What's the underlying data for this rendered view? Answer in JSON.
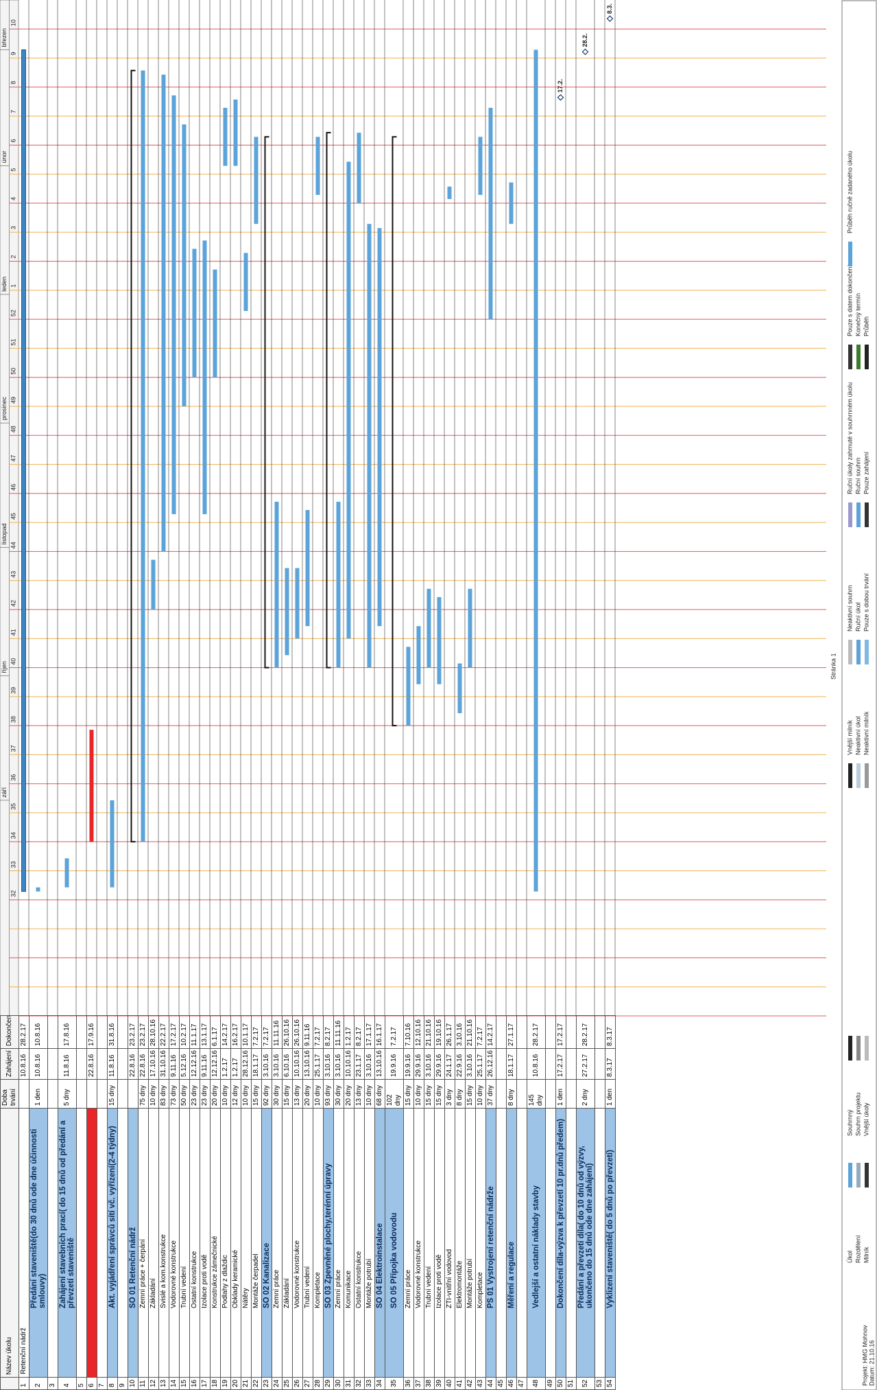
{
  "header": {
    "columns": [
      "Název úkolu",
      "Doba trvání",
      "Zahájení",
      "Dokončení"
    ]
  },
  "timeline": {
    "months": [
      "září",
      "říjen",
      "listopad",
      "prosinec",
      "leden",
      "únor",
      "březen"
    ],
    "weeks": [
      null,
      null,
      null,
      null,
      32,
      33,
      34,
      35,
      36,
      37,
      38,
      39,
      40,
      41,
      42,
      43,
      44,
      45,
      46,
      47,
      48,
      49,
      50,
      51,
      52,
      1,
      2,
      3,
      4,
      5,
      6,
      7,
      8,
      9,
      10
    ]
  },
  "colors": {
    "task": "#5ba3d9",
    "project": "#3c86c4",
    "summary": "#111111",
    "critical": "#e8262a",
    "highlight": "#9dc3e6",
    "grid_a": "#e3585a",
    "grid_b": "#f0b050"
  },
  "rows": [
    {
      "id": 1,
      "name": "Retenční nádrž",
      "start": "10.8.16",
      "end": "28.2.17",
      "bar": "project"
    },
    {
      "id": 2,
      "name": "Předání staveniště(do 30 dnů ode dne účinnosti smlouvy)",
      "duration": "1 den",
      "start": "10.8.16",
      "end": "10.8.16",
      "bar": "task",
      "highlight": "highlight"
    },
    {
      "id": 3
    },
    {
      "id": 4,
      "name": "Zahájení stavebních prací( do 15 dnů od předání a převzetí staveniště",
      "duration": "5 dny",
      "start": "11.8.16",
      "end": "17.8.16",
      "bar": "task",
      "highlight": "highlight"
    },
    {
      "id": 5
    },
    {
      "id": 6,
      "start": "22.8.16",
      "end": "17.9.16",
      "bar": "critical",
      "highlight": "critical"
    },
    {
      "id": 7
    },
    {
      "id": 8,
      "name": "Akt. vyjádření správců sítí vč. vyřízení(2-4 týdny)",
      "duration": "15 dny",
      "start": "11.8.16",
      "end": "31.8.16",
      "bar": "task",
      "highlight": "highlight"
    },
    {
      "id": 9
    },
    {
      "id": 10,
      "name": "SO 01 Retenční nádrž",
      "start": "22.8.16",
      "end": "23.2.17",
      "bar": "summary",
      "highlight": "highlight"
    },
    {
      "id": 11,
      "name": "Zemní práce + čerpání",
      "duration": "75 dny",
      "start": "22.8.16",
      "end": "23.2.17",
      "bar": "task"
    },
    {
      "id": 12,
      "name": "Základání",
      "duration": "10 dny",
      "start": "17.10.16",
      "end": "28.10.16",
      "bar": "task"
    },
    {
      "id": 13,
      "name": "Svislé a kom.konstrukce",
      "duration": "83 dny",
      "start": "31.10.16",
      "end": "22.2.17",
      "bar": "task"
    },
    {
      "id": 14,
      "name": "Vodorovné konstrukce",
      "duration": "73 dny",
      "start": "9.11.16",
      "end": "17.2.17",
      "bar": "task"
    },
    {
      "id": 15,
      "name": "Trubní vedení",
      "duration": "50 dny",
      "start": "5.12.16",
      "end": "10.2.17",
      "bar": "task"
    },
    {
      "id": 16,
      "name": "Ostatní konstrukce",
      "duration": "23 dny",
      "start": "12.12.16",
      "end": "11.1.17",
      "bar": "task"
    },
    {
      "id": 17,
      "name": "Izolace proti vodě",
      "duration": "23 dny",
      "start": "9.11.16",
      "end": "13.1.17",
      "bar": "task"
    },
    {
      "id": 18,
      "name": "Konstrukce zámečnické",
      "duration": "20 dny",
      "start": "12.12.16",
      "end": "6.1.17",
      "bar": "task"
    },
    {
      "id": 19,
      "name": "Podlahy z dlaždic",
      "duration": "10 dny",
      "start": "1.2.17",
      "end": "14.2.17",
      "bar": "task"
    },
    {
      "id": 20,
      "name": "Obklady keramické",
      "duration": "12 dny",
      "start": "1.2.17",
      "end": "16.2.17",
      "bar": "task"
    },
    {
      "id": 21,
      "name": "Nátěry",
      "duration": "10 dny",
      "start": "28.12.16",
      "end": "10.1.17",
      "bar": "task"
    },
    {
      "id": 22,
      "name": "Montáže čerpadel",
      "duration": "15 dny",
      "start": "18.1.17",
      "end": "7.2.17",
      "bar": "task"
    },
    {
      "id": 23,
      "name": "SO 02 Kanalizace",
      "duration": "92 dny",
      "start": "3.10.16",
      "end": "7.2.17",
      "bar": "summary",
      "highlight": "highlight"
    },
    {
      "id": 24,
      "name": "Zemní práce",
      "duration": "30 dny",
      "start": "3.10.16",
      "end": "11.11.16",
      "bar": "task"
    },
    {
      "id": 25,
      "name": "Základání",
      "duration": "15 dny",
      "start": "6.10.16",
      "end": "26.10.16",
      "bar": "task"
    },
    {
      "id": 26,
      "name": "Vodorovné konstrukce",
      "duration": "13 dny",
      "start": "10.10.16",
      "end": "26.10.16",
      "bar": "task"
    },
    {
      "id": 27,
      "name": "Trubní vedení",
      "duration": "20 dny",
      "start": "13.10.16",
      "end": "9.11.16",
      "bar": "task"
    },
    {
      "id": 28,
      "name": "Kompletace",
      "duration": "10 dny",
      "start": "25.1.17",
      "end": "7.2.17",
      "bar": "task"
    },
    {
      "id": 29,
      "name": "SO 03 Zpevněné plochy,terénní úpravy",
      "duration": "93 dny",
      "start": "3.10.16",
      "end": "8.2.17",
      "bar": "summary",
      "highlight": "highlight"
    },
    {
      "id": 30,
      "name": "Zemní práce",
      "duration": "30 dny",
      "start": "3.10.16",
      "end": "11.11.16",
      "bar": "task"
    },
    {
      "id": 31,
      "name": "Komunikace",
      "duration": "20 dny",
      "start": "10.10.16",
      "end": "1.2.17",
      "bar": "task"
    },
    {
      "id": 32,
      "name": "Ostatní konstrukce",
      "duration": "13 dny",
      "start": "23.1.17",
      "end": "8.2.17",
      "bar": "task"
    },
    {
      "id": 33,
      "name": "Montáže potrubí",
      "duration": "10 dny",
      "start": "3.10.16",
      "end": "17.1.17",
      "bar": "task"
    },
    {
      "id": 34,
      "name": "SO 04 Elektroinstalace",
      "duration": "68 dny",
      "start": "13.10.16",
      "end": "16.1.17",
      "bar": "task",
      "highlight": "highlight"
    },
    {
      "id": 35,
      "name": "SO 05 Přípojka vodovodu",
      "duration": "102 dny",
      "start": "19.9.16",
      "end": "7.2.17",
      "bar": "summary",
      "highlight": "highlight"
    },
    {
      "id": 36,
      "name": "Zemní práce",
      "duration": "15 dny",
      "start": "19.9.16",
      "end": "7.10.16",
      "bar": "task"
    },
    {
      "id": 37,
      "name": "Vodorovné konstrukce",
      "duration": "10 dny",
      "start": "29.9.16",
      "end": "12.10.16",
      "bar": "task"
    },
    {
      "id": 38,
      "name": "Trubní vedení",
      "duration": "15 dny",
      "start": "3.10.16",
      "end": "21.10.16",
      "bar": "task"
    },
    {
      "id": 39,
      "name": "Izolace proti vodě",
      "duration": "15 dny",
      "start": "29.9.16",
      "end": "19.10.16",
      "bar": "task"
    },
    {
      "id": 40,
      "name": "ZTI-vnitřní vodovod",
      "duration": "3 dny",
      "start": "24.1.17",
      "end": "26.1.17",
      "bar": "task"
    },
    {
      "id": 41,
      "name": "Elektromontáže",
      "duration": "8 dny",
      "start": "22.9.16",
      "end": "3.10.16",
      "bar": "task"
    },
    {
      "id": 42,
      "name": "Montáže potrubí",
      "duration": "15 dny",
      "start": "3.10.16",
      "end": "21.10.16",
      "bar": "task"
    },
    {
      "id": 43,
      "name": "Kompletace",
      "duration": "10 dny",
      "start": "25.1.17",
      "end": "7.2.17",
      "bar": "task"
    },
    {
      "id": 44,
      "name": "PS 01 Vystrojení retenční nádrže",
      "duration": "37 dny",
      "start": "26.12.16",
      "end": "14.2.17",
      "bar": "task",
      "highlight": "highlight"
    },
    {
      "id": 45
    },
    {
      "id": 46,
      "name": "Měření a regulace",
      "duration": "8 dny",
      "start": "18.1.17",
      "end": "27.1.17",
      "bar": "task",
      "highlight": "highlight"
    },
    {
      "id": 47
    },
    {
      "id": 48,
      "name": "Vedlejší a ostatní náklady stavby",
      "duration": "145 dny",
      "start": "10.8.16",
      "end": "28.2.17",
      "bar": "task",
      "highlight": "highlight"
    },
    {
      "id": 49
    },
    {
      "id": 50,
      "name": "Dokončení díla-výzva k převzetí 10 pr.dnů předem)",
      "duration": "1 den",
      "start": "17.2.17",
      "end": "17.2.17",
      "bar": "milestone",
      "milestone": "17.2.",
      "highlight": "highlight"
    },
    {
      "id": 51
    },
    {
      "id": 52,
      "name": "Předání a převzetí díla( do 10 dnů od výzvy, ukončeno do 15 dnů ode dne zahájení)",
      "duration": "2 dny",
      "start": "27.2.17",
      "end": "28.2.17",
      "bar": "milestone",
      "milestone": "28.2.",
      "highlight": "highlight"
    },
    {
      "id": 53
    },
    {
      "id": 54,
      "name": "Vyklizení staveniště( do 5 dnů po převzetí)",
      "duration": "1 den",
      "start": "8.3.17",
      "end": "8.3.17",
      "bar": "milestone",
      "milestone": "8.3.",
      "highlight": "highlight"
    }
  ],
  "legend": {
    "items": [
      "Úkol",
      "Rozdělení",
      "Milník",
      "Souhrnný",
      "Souhrn projektu",
      "Vnější úkoly",
      "Vnější milník",
      "Neaktivní úkol",
      "Neaktivní milník",
      "Neaktivní souhrn",
      "Ruční úkol",
      "Pouze s dobou trvání",
      "Ruční úkoly zahrnuté v souhrnném úkolu",
      "Ruční souhrn",
      "Pouze zahájení",
      "Pouze s datem dokončení",
      "Konečný termín",
      "Průběh",
      "Průběh ručně zadaného úkolu"
    ]
  },
  "footer": {
    "project": "Projekt: HMG Mohnov",
    "date": "Datum: 21.10.16",
    "page": "Stránka 1"
  }
}
